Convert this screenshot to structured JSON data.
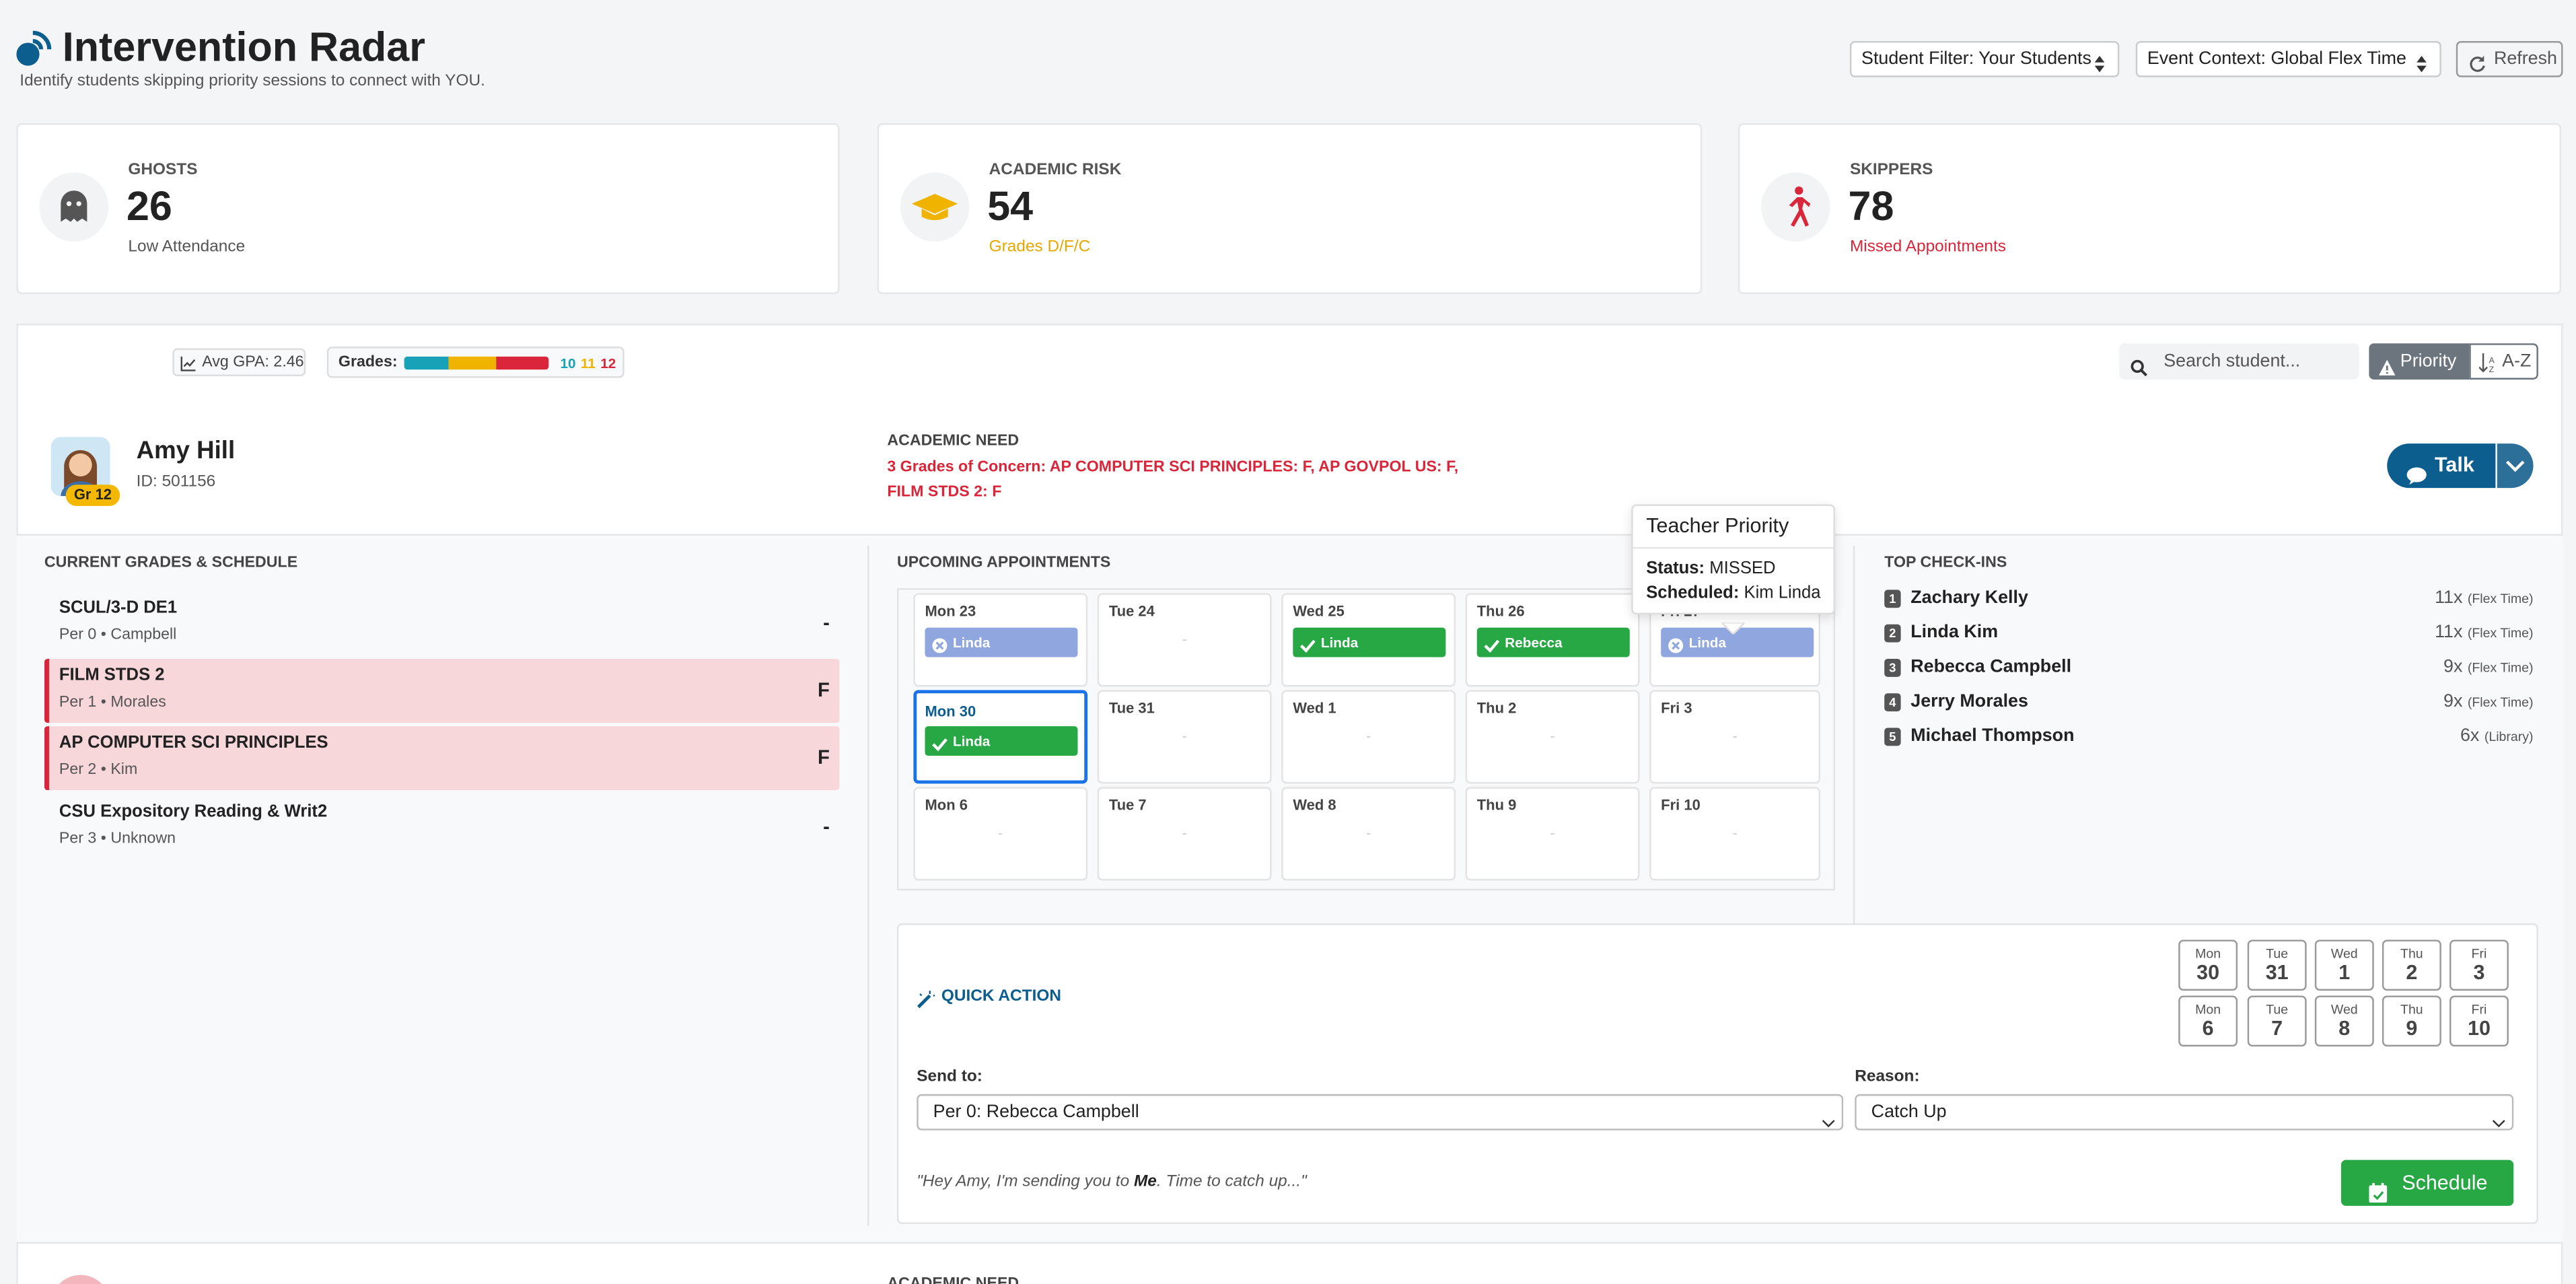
{
  "header": {
    "title": "Intervention Radar",
    "subtitle": "Identify students skipping priority sessions to connect with YOU.",
    "filters": [
      "Student Filter: Your Students",
      "Event Context: Global Flex Time"
    ],
    "refresh": "Refresh"
  },
  "stats": [
    {
      "label": "GHOSTS",
      "value": 26,
      "note": "Low Attendance",
      "note_color": "#555555",
      "icon_color": "#555555"
    },
    {
      "label": "ACADEMIC RISK",
      "value": 54,
      "note": "Grades D/F/C",
      "note_color": "#e6a800",
      "icon_color": "#f0b400"
    },
    {
      "label": "SKIPPERS",
      "value": 78,
      "note": "Missed Appointments",
      "note_color": "#d9263a",
      "icon_color": "#d9263a"
    }
  ],
  "toolbar": {
    "avg_gpa": "Avg GPA: 2.46",
    "grades_label": "Grades:",
    "grade_counts": [
      {
        "value": 10,
        "color": "#17a2b8"
      },
      {
        "value": 11,
        "color": "#f0b400"
      },
      {
        "value": 12,
        "color": "#d9263a"
      }
    ],
    "search_placeholder": "Search student...",
    "sort": [
      "Priority",
      "A-Z"
    ]
  },
  "student": {
    "name": "Amy Hill",
    "id": "ID: 501156",
    "grade_badge": "Gr 12",
    "academic_need_label": "ACADEMIC NEED",
    "academic_need": "3 Grades of Concern: AP COMPUTER SCI PRINCIPLES: F, AP GOVPOL US: F, FILM STDS 2: F",
    "talk": "Talk"
  },
  "schedule": {
    "title": "CURRENT GRADES & SCHEDULE",
    "rows": [
      {
        "course": "SCUL/3-D DE1",
        "detail": "Per 0 • Campbell",
        "grade": "-",
        "flag": false
      },
      {
        "course": "FILM STDS 2",
        "detail": "Per 1 • Morales",
        "grade": "F",
        "flag": true
      },
      {
        "course": "AP COMPUTER SCI PRINCIPLES",
        "detail": "Per 2 • Kim",
        "grade": "F",
        "flag": true
      },
      {
        "course": "CSU Expository Reading & Writ2",
        "detail": "Per 3 • Unknown",
        "grade": "-",
        "flag": false
      }
    ]
  },
  "appointments": {
    "title": "UPCOMING APPOINTMENTS",
    "empty_marker": "-",
    "days": [
      {
        "label": "Mon 23",
        "appt": {
          "name": "Linda",
          "color": "#8fa6de",
          "icon": "cross"
        }
      },
      {
        "label": "Tue 24",
        "appt": null
      },
      {
        "label": "Wed 25",
        "appt": {
          "name": "Linda",
          "color": "#28a745",
          "icon": "check"
        }
      },
      {
        "label": "Thu 26",
        "appt": {
          "name": "Rebecca",
          "color": "#28a745",
          "icon": "check"
        }
      },
      {
        "label": "Fri 27",
        "appt": {
          "name": "Linda",
          "color": "#8fa6de",
          "icon": "cross"
        }
      },
      {
        "label": "Mon 30",
        "appt": {
          "name": "Linda",
          "color": "#28a745",
          "icon": "check"
        },
        "today": true
      },
      {
        "label": "Tue 31",
        "appt": null
      },
      {
        "label": "Wed 1",
        "appt": null
      },
      {
        "label": "Thu 2",
        "appt": null
      },
      {
        "label": "Fri 3",
        "appt": null
      },
      {
        "label": "Mon 6",
        "appt": null
      },
      {
        "label": "Tue 7",
        "appt": null
      },
      {
        "label": "Wed 8",
        "appt": null
      },
      {
        "label": "Thu 9",
        "appt": null
      },
      {
        "label": "Fri 10",
        "appt": null
      }
    ]
  },
  "tooltip": {
    "title": "Teacher Priority",
    "status_label": "Status:",
    "status": "MISSED",
    "scheduled_label": "Scheduled:",
    "scheduled": "Kim Linda"
  },
  "checkins": {
    "title": "TOP CHECK-INS",
    "items": [
      {
        "rank": 1,
        "name": "Zachary Kelly",
        "count": "11x",
        "context": "(Flex Time)"
      },
      {
        "rank": 2,
        "name": "Linda Kim",
        "count": "11x",
        "context": "(Flex Time)"
      },
      {
        "rank": 3,
        "name": "Rebecca Campbell",
        "count": "9x",
        "context": "(Flex Time)"
      },
      {
        "rank": 4,
        "name": "Jerry Morales",
        "count": "9x",
        "context": "(Flex Time)"
      },
      {
        "rank": 5,
        "name": "Michael Thompson",
        "count": "6x",
        "context": "(Library)"
      }
    ]
  },
  "quick_action": {
    "title": "QUICK ACTION",
    "dates": [
      {
        "day": "Mon",
        "date": 30
      },
      {
        "day": "Tue",
        "date": 31
      },
      {
        "day": "Wed",
        "date": 1
      },
      {
        "day": "Thu",
        "date": 2
      },
      {
        "day": "Fri",
        "date": 3
      },
      {
        "day": "Mon",
        "date": 6
      },
      {
        "day": "Tue",
        "date": 7
      },
      {
        "day": "Wed",
        "date": 8
      },
      {
        "day": "Thu",
        "date": 9
      },
      {
        "day": "Fri",
        "date": 10
      }
    ],
    "send_to_label": "Send to:",
    "send_to": "Per 0: Rebecca Campbell",
    "reason_label": "Reason:",
    "reason": "Catch Up",
    "message": [
      "\"Hey Amy, I'm sending you to ",
      "Me",
      ". Time to catch up...\""
    ],
    "schedule": "Schedule"
  },
  "next_student": {
    "academic_need_label": "ACADEMIC NEED"
  }
}
